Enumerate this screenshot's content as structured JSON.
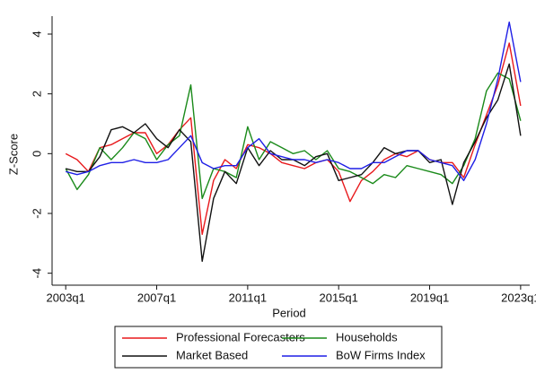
{
  "chart_data": {
    "type": "line",
    "x_label": "Period",
    "y_label": "Z-Score",
    "x": [
      2003,
      2003.5,
      2004,
      2004.5,
      2005,
      2005.5,
      2006,
      2006.5,
      2007,
      2007.5,
      2008,
      2008.5,
      2009,
      2009.5,
      2010,
      2010.5,
      2011,
      2011.5,
      2012,
      2012.5,
      2013,
      2013.5,
      2014,
      2014.5,
      2015,
      2015.5,
      2016,
      2016.5,
      2017,
      2017.5,
      2018,
      2018.5,
      2019,
      2019.5,
      2020,
      2020.5,
      2021,
      2021.5,
      2022,
      2022.5,
      2023
    ],
    "series": [
      {
        "name": "Professional Forecasters",
        "color": "#e8191c",
        "values": [
          0,
          -0.2,
          -0.6,
          0.2,
          0.3,
          0.5,
          0.7,
          0.7,
          0.0,
          0.3,
          0.8,
          1.2,
          -2.7,
          -0.9,
          -0.2,
          -0.5,
          0.3,
          0.2,
          0.0,
          -0.3,
          -0.4,
          -0.5,
          -0.3,
          -0.2,
          -0.6,
          -1.6,
          -0.9,
          -0.6,
          -0.2,
          0.0,
          -0.1,
          0.1,
          -0.2,
          -0.3,
          -0.3,
          -0.8,
          0.3,
          1.3,
          2.3,
          3.7,
          1.6
        ]
      },
      {
        "name": "Households",
        "color": "#1a8a1a",
        "values": [
          -0.5,
          -1.2,
          -0.7,
          0.2,
          -0.2,
          0.2,
          0.7,
          0.5,
          -0.2,
          0.3,
          0.6,
          2.3,
          -1.5,
          -0.5,
          -0.6,
          -0.8,
          0.9,
          -0.2,
          0.4,
          0.2,
          0.0,
          0.1,
          -0.2,
          0.1,
          -0.5,
          -0.6,
          -0.8,
          -1.0,
          -0.7,
          -0.8,
          -0.4,
          -0.5,
          -0.6,
          -0.7,
          -1.0,
          -0.4,
          0.5,
          2.1,
          2.7,
          2.5,
          1.1
        ]
      },
      {
        "name": "Market Based",
        "color": "#111111",
        "values": [
          -0.5,
          -0.6,
          -0.6,
          -0.1,
          0.8,
          0.9,
          0.7,
          1.0,
          0.5,
          0.2,
          0.8,
          0.4,
          -3.6,
          -1.5,
          -0.6,
          -1.0,
          0.2,
          -0.4,
          0.1,
          -0.2,
          -0.2,
          -0.4,
          -0.1,
          0.0,
          -0.9,
          -0.8,
          -0.7,
          -0.3,
          0.2,
          0.0,
          0.1,
          0.1,
          -0.3,
          -0.2,
          -1.7,
          -0.3,
          0.4,
          1.2,
          1.8,
          3.0,
          0.6
        ]
      },
      {
        "name": "BoW Firms Index",
        "color": "#1f1fe6",
        "values": [
          -0.6,
          -0.7,
          -0.6,
          -0.4,
          -0.3,
          -0.3,
          -0.2,
          -0.3,
          -0.3,
          -0.2,
          0.2,
          0.6,
          -0.3,
          -0.5,
          -0.4,
          -0.4,
          0.2,
          0.5,
          0.0,
          -0.1,
          -0.2,
          -0.2,
          -0.3,
          -0.2,
          -0.3,
          -0.5,
          -0.5,
          -0.3,
          -0.3,
          -0.1,
          0.1,
          0.1,
          -0.2,
          -0.3,
          -0.4,
          -0.9,
          -0.2,
          1.0,
          2.5,
          4.4,
          2.4
        ]
      }
    ],
    "xlim": [
      2002.4,
      2023.4
    ],
    "xticks": [
      {
        "value": 2003,
        "label": "2003q1"
      },
      {
        "value": 2007,
        "label": "2007q1"
      },
      {
        "value": 2011,
        "label": "2011q1"
      },
      {
        "value": 2015,
        "label": "2015q1"
      },
      {
        "value": 2019,
        "label": "2019q1"
      },
      {
        "value": 2023,
        "label": "2023q1"
      }
    ],
    "ylim": [
      -4.4,
      4.6
    ],
    "yticks": [
      -4,
      -2,
      0,
      2,
      4
    ],
    "grid": false,
    "legend": "bottom"
  }
}
